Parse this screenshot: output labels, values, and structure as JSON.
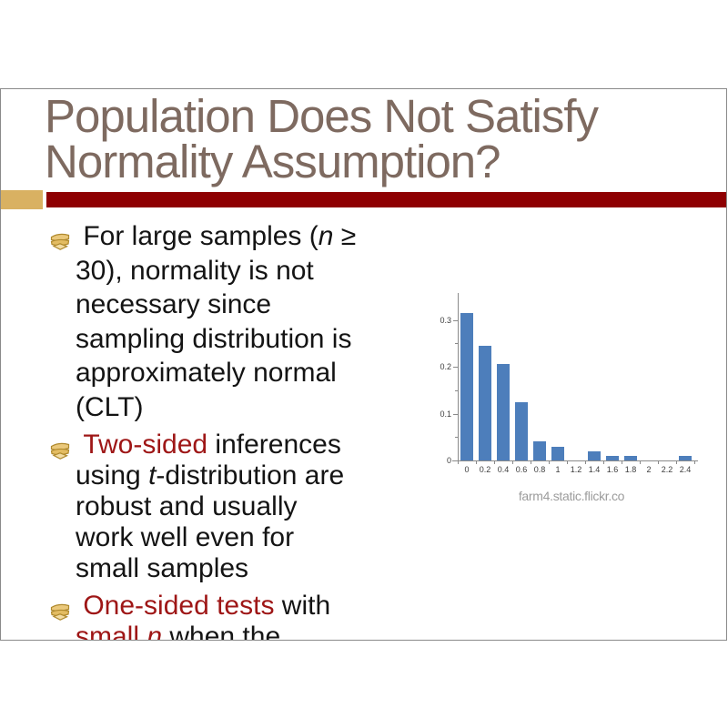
{
  "page": {
    "background": "#FFFFFF",
    "border_color": "#8A8A8A"
  },
  "slide": {
    "title": {
      "line1": "Population Does Not Satisfy",
      "line2": "Normality Assumption?",
      "color": "#7E6A60"
    },
    "accent": {
      "square_color": "#D9B162",
      "bar_color": "#8E0002"
    },
    "text_colors": {
      "black": "#141414",
      "red": "#9E1616"
    },
    "bullet_icon": "gold-stacked-books-icon",
    "bullets": [
      {
        "runs": [
          {
            "t": " For large samples (",
            "s": "k"
          },
          {
            "t": "n",
            "s": "ki"
          },
          {
            "t": " ≥\n30), normality is not\nnecessary since\nsampling distribution is\napproximately normal\n(CLT)",
            "s": "k"
          }
        ]
      },
      {
        "runs": [
          {
            "t": " ",
            "s": "k"
          },
          {
            "t": "Two-sided",
            "s": "r"
          },
          {
            "t": " inferences\nusing ",
            "s": "k"
          },
          {
            "t": "t",
            "s": "ki"
          },
          {
            "t": "-distribution are\nrobust and usually\nwork well even for\nsmall samples",
            "s": "k"
          }
        ]
      },
      {
        "runs": [
          {
            "t": " ",
            "s": "k"
          },
          {
            "t": "One-sided tests",
            "s": "r"
          },
          {
            "t": " with\n",
            "s": "k"
          },
          {
            "t": "small ",
            "s": "r"
          },
          {
            "t": "n",
            "s": "ri"
          },
          {
            "t": " when the",
            "s": "k"
          }
        ]
      }
    ]
  },
  "chart_data": {
    "type": "bar",
    "categories": [
      "0",
      "0.2",
      "0.4",
      "0.6",
      "0.8",
      "1",
      "1.2",
      "1.4",
      "1.6",
      "1.8",
      "2",
      "2.2",
      "2.4"
    ],
    "values": [
      0.315,
      0.245,
      0.205,
      0.125,
      0.04,
      0.03,
      0,
      0.02,
      0.01,
      0.01,
      0,
      0,
      0.01
    ],
    "title": "",
    "xlabel": "",
    "ylabel": "",
    "ylim": [
      0,
      0.35
    ],
    "yticks": [
      "0",
      "0.1",
      "0.2",
      "0.3"
    ],
    "ytick_values": [
      0,
      0.1,
      0.2,
      0.3
    ],
    "minor_ytick_values": [
      0.05,
      0.15,
      0.25
    ],
    "grid": false,
    "legend": "none",
    "bar_color": "#4D7EBB",
    "axis_color": "#8A8A8A",
    "label_color": "#3D3D3D",
    "caption": "farm4.static.flickr.co",
    "caption_color": "#9C9C9C"
  }
}
